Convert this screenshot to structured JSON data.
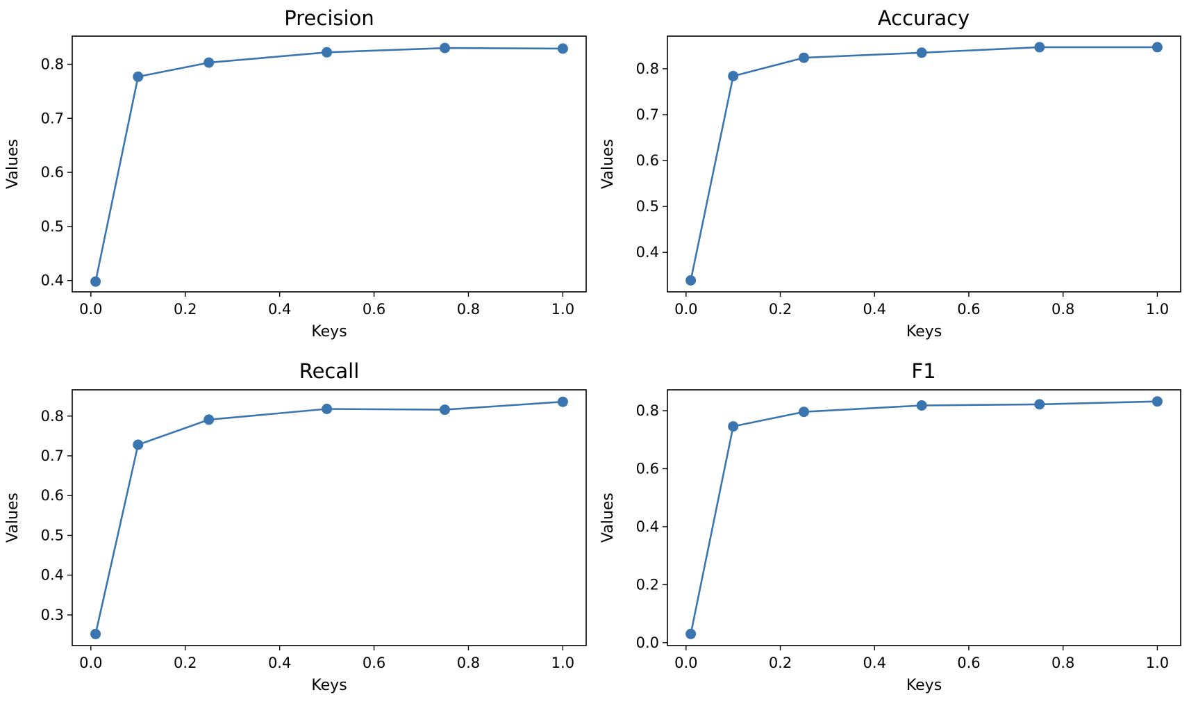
{
  "chart_data": [
    {
      "type": "line",
      "title": "Precision",
      "xlabel": "Keys",
      "ylabel": "Values",
      "x": [
        0.01,
        0.1,
        0.25,
        0.5,
        0.75,
        1.0
      ],
      "series": [
        {
          "values": [
            0.398,
            0.777,
            0.803,
            0.822,
            0.83,
            0.829
          ],
          "color": "#3a75b0"
        }
      ],
      "xlim": [
        -0.0395,
        1.0495
      ],
      "ylim": [
        0.379,
        0.852
      ],
      "xticks": [
        "0.0",
        "0.2",
        "0.4",
        "0.6",
        "0.8",
        "1.0"
      ],
      "yticks": [
        "0.4",
        "0.5",
        "0.6",
        "0.7",
        "0.8"
      ],
      "grid": false,
      "markers": true
    },
    {
      "type": "line",
      "title": "Accuracy",
      "xlabel": "Keys",
      "ylabel": "Values",
      "x": [
        0.01,
        0.1,
        0.25,
        0.5,
        0.75,
        1.0
      ],
      "series": [
        {
          "values": [
            0.339,
            0.784,
            0.824,
            0.835,
            0.847,
            0.847
          ],
          "color": "#3a75b0"
        }
      ],
      "xlim": [
        -0.0395,
        1.0495
      ],
      "ylim": [
        0.314,
        0.871
      ],
      "xticks": [
        "0.0",
        "0.2",
        "0.4",
        "0.6",
        "0.8",
        "1.0"
      ],
      "yticks": [
        "0.4",
        "0.5",
        "0.6",
        "0.7",
        "0.8"
      ],
      "grid": false,
      "markers": true
    },
    {
      "type": "line",
      "title": "Recall",
      "xlabel": "Keys",
      "ylabel": "Values",
      "x": [
        0.01,
        0.1,
        0.25,
        0.5,
        0.75,
        1.0
      ],
      "series": [
        {
          "values": [
            0.252,
            0.728,
            0.791,
            0.818,
            0.816,
            0.836
          ],
          "color": "#3a75b0"
        }
      ],
      "xlim": [
        -0.0395,
        1.0495
      ],
      "ylim": [
        0.223,
        0.866
      ],
      "xticks": [
        "0.0",
        "0.2",
        "0.4",
        "0.6",
        "0.8",
        "1.0"
      ],
      "yticks": [
        "0.3",
        "0.4",
        "0.5",
        "0.6",
        "0.7",
        "0.8"
      ],
      "grid": false,
      "markers": true
    },
    {
      "type": "line",
      "title": "F1",
      "xlabel": "Keys",
      "ylabel": "Values",
      "x": [
        0.01,
        0.1,
        0.25,
        0.5,
        0.75,
        1.0
      ],
      "series": [
        {
          "values": [
            0.03,
            0.746,
            0.796,
            0.818,
            0.822,
            0.832
          ],
          "color": "#3a75b0"
        }
      ],
      "xlim": [
        -0.0395,
        1.0495
      ],
      "ylim": [
        -0.01,
        0.872
      ],
      "xticks": [
        "0.0",
        "0.2",
        "0.4",
        "0.6",
        "0.8",
        "1.0"
      ],
      "yticks": [
        "0.0",
        "0.2",
        "0.4",
        "0.6",
        "0.8"
      ],
      "grid": false,
      "markers": true
    }
  ]
}
